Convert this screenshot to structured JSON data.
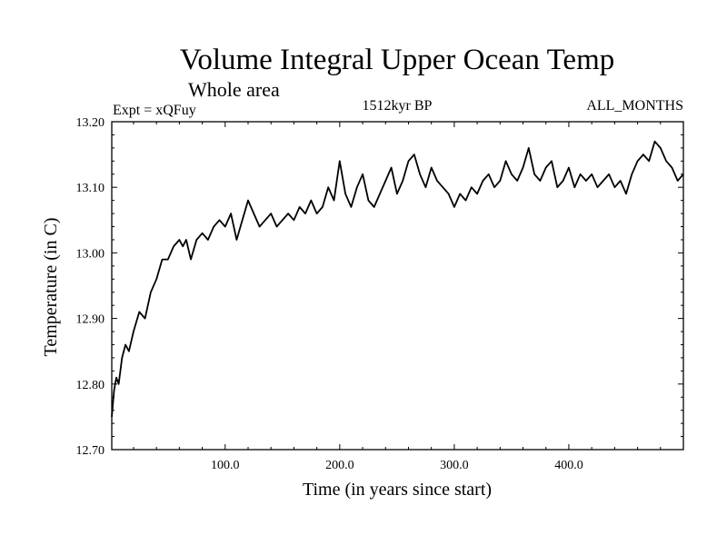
{
  "chart_data": {
    "type": "line",
    "title": "Volume Integral Upper Ocean Temp",
    "subtitle": "Whole area",
    "left_label": "Expt = xQFuy",
    "center_label": "1512kyr BP",
    "right_label": "ALL_MONTHS",
    "xlabel": "Time (in years since start)",
    "ylabel": "Temperature (in C)",
    "xlim": [
      1,
      500
    ],
    "ylim": [
      12.7,
      13.2
    ],
    "x_ticks": [
      100.0,
      200.0,
      300.0,
      400.0
    ],
    "x_tick_labels": [
      "100.0",
      "200.0",
      "300.0",
      "400.0"
    ],
    "y_ticks": [
      12.7,
      12.8,
      12.9,
      13.0,
      13.1,
      13.2
    ],
    "y_tick_labels": [
      "12.70",
      "12.80",
      "12.90",
      "13.00",
      "13.10",
      "13.20"
    ],
    "series": [
      {
        "name": "Temperature",
        "color": "#000000",
        "x": [
          1,
          3,
          5,
          7,
          10,
          13,
          16,
          20,
          25,
          30,
          35,
          40,
          45,
          50,
          55,
          60,
          63,
          66,
          70,
          75,
          80,
          85,
          90,
          95,
          100,
          105,
          110,
          115,
          120,
          125,
          130,
          135,
          140,
          145,
          150,
          155,
          160,
          165,
          170,
          175,
          180,
          185,
          190,
          195,
          200,
          205,
          210,
          215,
          220,
          225,
          230,
          235,
          240,
          245,
          250,
          255,
          260,
          265,
          270,
          275,
          280,
          285,
          290,
          295,
          300,
          305,
          310,
          315,
          320,
          325,
          330,
          335,
          340,
          345,
          350,
          355,
          360,
          365,
          370,
          375,
          380,
          385,
          390,
          395,
          400,
          405,
          410,
          415,
          420,
          425,
          430,
          435,
          440,
          445,
          450,
          455,
          460,
          465,
          470,
          475,
          480,
          485,
          490,
          495,
          500
        ],
        "values": [
          12.75,
          12.79,
          12.81,
          12.8,
          12.84,
          12.86,
          12.85,
          12.88,
          12.91,
          12.9,
          12.94,
          12.96,
          12.99,
          12.99,
          13.01,
          13.02,
          13.01,
          13.02,
          12.99,
          13.02,
          13.03,
          13.02,
          13.04,
          13.05,
          13.04,
          13.06,
          13.02,
          13.05,
          13.08,
          13.06,
          13.04,
          13.05,
          13.06,
          13.04,
          13.05,
          13.06,
          13.05,
          13.07,
          13.06,
          13.08,
          13.06,
          13.07,
          13.1,
          13.08,
          13.14,
          13.09,
          13.07,
          13.1,
          13.12,
          13.08,
          13.07,
          13.09,
          13.11,
          13.13,
          13.09,
          13.11,
          13.14,
          13.15,
          13.12,
          13.1,
          13.13,
          13.11,
          13.1,
          13.09,
          13.07,
          13.09,
          13.08,
          13.1,
          13.09,
          13.11,
          13.12,
          13.1,
          13.11,
          13.14,
          13.12,
          13.11,
          13.13,
          13.16,
          13.12,
          13.11,
          13.13,
          13.14,
          13.1,
          13.11,
          13.13,
          13.1,
          13.12,
          13.11,
          13.12,
          13.1,
          13.11,
          13.12,
          13.1,
          13.11,
          13.09,
          13.12,
          13.14,
          13.15,
          13.14,
          13.17,
          13.16,
          13.14,
          13.13,
          13.11,
          13.12
        ]
      }
    ]
  }
}
